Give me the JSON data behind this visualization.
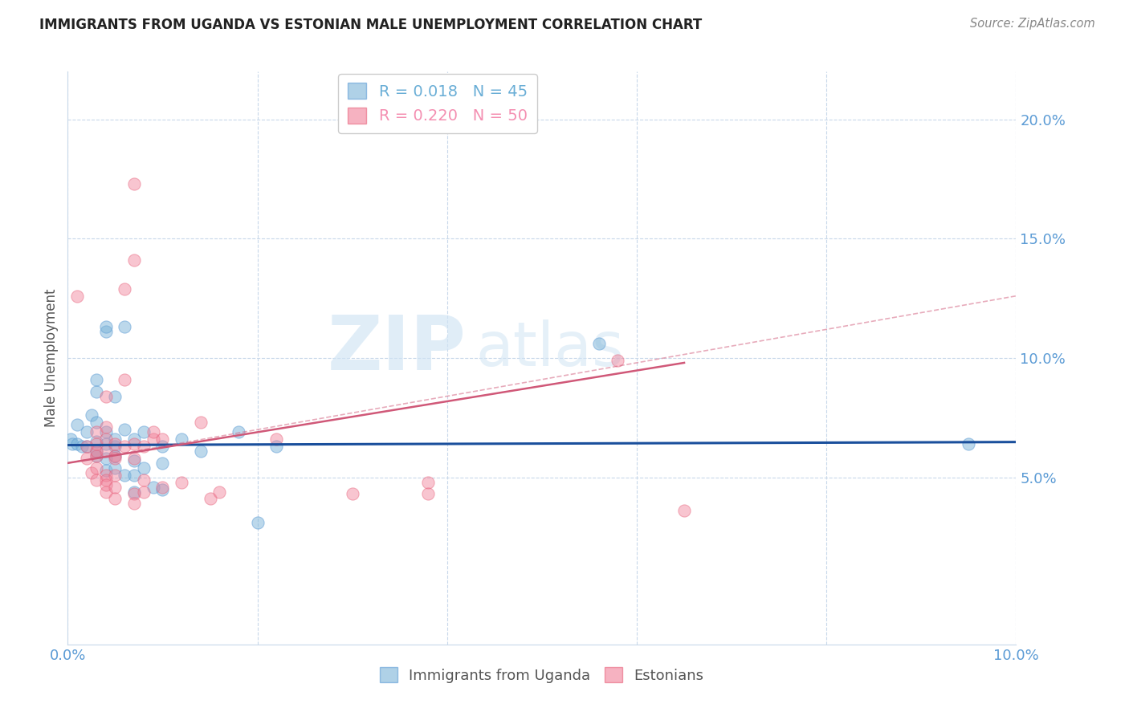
{
  "title": "IMMIGRANTS FROM UGANDA VS ESTONIAN MALE UNEMPLOYMENT CORRELATION CHART",
  "source": "Source: ZipAtlas.com",
  "ylabel": "Male Unemployment",
  "xlim": [
    0.0,
    0.1
  ],
  "ylim": [
    -0.02,
    0.22
  ],
  "yticks": [
    0.05,
    0.1,
    0.15,
    0.2
  ],
  "ytick_labels": [
    "5.0%",
    "10.0%",
    "15.0%",
    "20.0%"
  ],
  "xticks": [
    0.0,
    0.02,
    0.04,
    0.06,
    0.08,
    0.1
  ],
  "xtick_labels": [
    "0.0%",
    "",
    "",
    "",
    "",
    "10.0%"
  ],
  "watermark_zip": "ZIP",
  "watermark_atlas": "atlas",
  "legend_entries": [
    {
      "label": "R = 0.018   N = 45",
      "color": "#6aaed6"
    },
    {
      "label": "R = 0.220   N = 50",
      "color": "#f48fb1"
    }
  ],
  "blue_color": "#7ab3d8",
  "pink_color": "#f08098",
  "blue_marker_edge": "#5b9bd5",
  "pink_marker_edge": "#e8607a",
  "blue_line_color": "#1a4f9c",
  "pink_line_color": "#d05878",
  "axis_color": "#5b9bd5",
  "grid_color": "#c8d8ea",
  "blue_scatter": [
    [
      0.0003,
      0.066
    ],
    [
      0.0005,
      0.064
    ],
    [
      0.001,
      0.064
    ],
    [
      0.001,
      0.072
    ],
    [
      0.0015,
      0.063
    ],
    [
      0.002,
      0.069
    ],
    [
      0.002,
      0.063
    ],
    [
      0.0025,
      0.076
    ],
    [
      0.003,
      0.061
    ],
    [
      0.003,
      0.065
    ],
    [
      0.003,
      0.059
    ],
    [
      0.003,
      0.073
    ],
    [
      0.003,
      0.086
    ],
    [
      0.003,
      0.091
    ],
    [
      0.004,
      0.064
    ],
    [
      0.004,
      0.058
    ],
    [
      0.004,
      0.069
    ],
    [
      0.004,
      0.053
    ],
    [
      0.004,
      0.111
    ],
    [
      0.004,
      0.113
    ],
    [
      0.005,
      0.063
    ],
    [
      0.005,
      0.054
    ],
    [
      0.005,
      0.059
    ],
    [
      0.005,
      0.066
    ],
    [
      0.005,
      0.084
    ],
    [
      0.006,
      0.07
    ],
    [
      0.006,
      0.113
    ],
    [
      0.006,
      0.051
    ],
    [
      0.007,
      0.051
    ],
    [
      0.007,
      0.066
    ],
    [
      0.007,
      0.057
    ],
    [
      0.007,
      0.044
    ],
    [
      0.008,
      0.054
    ],
    [
      0.008,
      0.069
    ],
    [
      0.009,
      0.046
    ],
    [
      0.01,
      0.063
    ],
    [
      0.01,
      0.056
    ],
    [
      0.01,
      0.045
    ],
    [
      0.012,
      0.066
    ],
    [
      0.014,
      0.061
    ],
    [
      0.018,
      0.069
    ],
    [
      0.02,
      0.031
    ],
    [
      0.022,
      0.063
    ],
    [
      0.056,
      0.106
    ],
    [
      0.095,
      0.064
    ]
  ],
  "pink_scatter": [
    [
      0.001,
      0.126
    ],
    [
      0.002,
      0.063
    ],
    [
      0.002,
      0.058
    ],
    [
      0.0025,
      0.052
    ],
    [
      0.003,
      0.059
    ],
    [
      0.003,
      0.054
    ],
    [
      0.003,
      0.061
    ],
    [
      0.003,
      0.064
    ],
    [
      0.003,
      0.069
    ],
    [
      0.003,
      0.049
    ],
    [
      0.004,
      0.071
    ],
    [
      0.004,
      0.066
    ],
    [
      0.004,
      0.061
    ],
    [
      0.004,
      0.051
    ],
    [
      0.004,
      0.049
    ],
    [
      0.004,
      0.044
    ],
    [
      0.004,
      0.084
    ],
    [
      0.004,
      0.047
    ],
    [
      0.005,
      0.059
    ],
    [
      0.005,
      0.064
    ],
    [
      0.005,
      0.058
    ],
    [
      0.005,
      0.051
    ],
    [
      0.005,
      0.046
    ],
    [
      0.005,
      0.041
    ],
    [
      0.006,
      0.091
    ],
    [
      0.006,
      0.129
    ],
    [
      0.006,
      0.063
    ],
    [
      0.007,
      0.064
    ],
    [
      0.007,
      0.058
    ],
    [
      0.007,
      0.043
    ],
    [
      0.007,
      0.039
    ],
    [
      0.007,
      0.141
    ],
    [
      0.007,
      0.173
    ],
    [
      0.008,
      0.063
    ],
    [
      0.008,
      0.049
    ],
    [
      0.008,
      0.044
    ],
    [
      0.009,
      0.066
    ],
    [
      0.009,
      0.069
    ],
    [
      0.01,
      0.066
    ],
    [
      0.01,
      0.046
    ],
    [
      0.012,
      0.048
    ],
    [
      0.014,
      0.073
    ],
    [
      0.015,
      0.041
    ],
    [
      0.016,
      0.044
    ],
    [
      0.022,
      0.066
    ],
    [
      0.03,
      0.043
    ],
    [
      0.038,
      0.048
    ],
    [
      0.038,
      0.043
    ],
    [
      0.058,
      0.099
    ],
    [
      0.065,
      0.036
    ]
  ],
  "blue_trendline": {
    "x": [
      0.0,
      0.1
    ],
    "y": [
      0.0635,
      0.0648
    ]
  },
  "pink_trendline": {
    "x": [
      0.0,
      0.065
    ],
    "y": [
      0.056,
      0.098
    ]
  },
  "pink_trendline_ext": {
    "x": [
      0.0,
      0.1
    ],
    "y": [
      0.056,
      0.126
    ]
  }
}
